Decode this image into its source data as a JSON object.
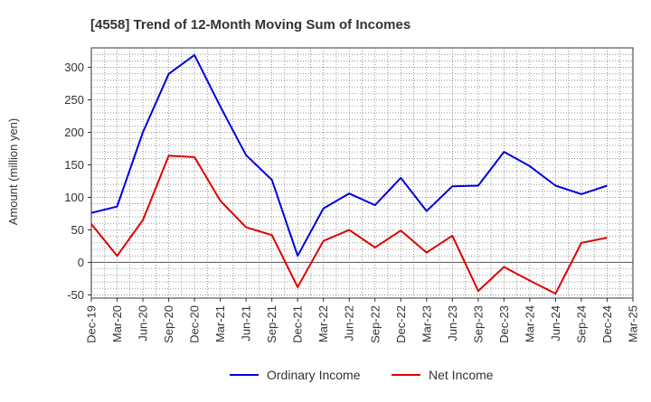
{
  "chart_data": {
    "type": "line",
    "title": "[4558]  Trend of 12-Month Moving Sum of Incomes",
    "xlabel": "",
    "ylabel": "Amount (million yen)",
    "ylim": [
      -55,
      330
    ],
    "yticks": [
      -50,
      0,
      50,
      100,
      150,
      200,
      250,
      300
    ],
    "categories": [
      "Dec-19",
      "Mar-20",
      "Jun-20",
      "Sep-20",
      "Dec-20",
      "Mar-21",
      "Jun-21",
      "Sep-21",
      "Dec-21",
      "Mar-22",
      "Jun-22",
      "Sep-22",
      "Dec-22",
      "Mar-23",
      "Jun-23",
      "Sep-23",
      "Dec-23",
      "Mar-24",
      "Jun-24",
      "Sep-24",
      "Dec-24",
      "Mar-25"
    ],
    "series": [
      {
        "name": "Ordinary Income",
        "color": "#0000dd",
        "values": [
          76,
          86,
          200,
          290,
          319,
          240,
          165,
          127,
          10,
          83,
          106,
          88,
          130,
          79,
          117,
          118,
          170,
          148,
          118,
          105,
          118,
          null
        ]
      },
      {
        "name": "Net Income",
        "color": "#dd0000",
        "values": [
          59,
          10,
          65,
          164,
          162,
          95,
          54,
          42,
          -38,
          33,
          50,
          23,
          49,
          15,
          41,
          -44,
          -7,
          -28,
          -48,
          30,
          38,
          null
        ]
      }
    ],
    "grid": true,
    "legend_position": "bottom-center"
  }
}
